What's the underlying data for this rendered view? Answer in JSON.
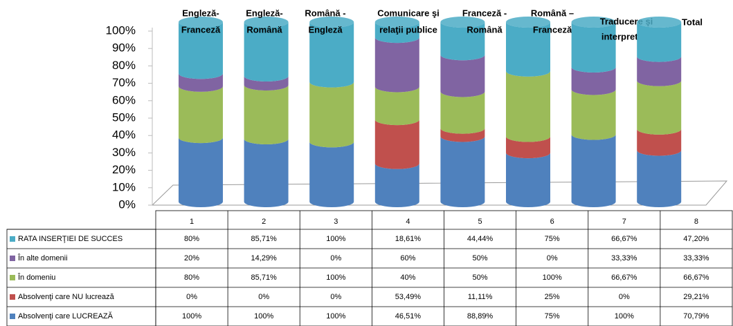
{
  "chart_data": {
    "type": "stacked-cylinder-table",
    "course_labels": [
      [
        "Engleză-",
        "Franceză"
      ],
      [
        "Engleză-",
        "Română"
      ],
      [
        "Română -",
        "Engleză"
      ],
      [
        "Comunicare şi",
        "relaţii publice"
      ],
      [
        "Franceză -",
        "Română"
      ],
      [
        "Română –",
        "Franceză"
      ],
      [
        "Traducere şi",
        "interpretare"
      ],
      [
        "Total"
      ]
    ],
    "categories": [
      "1",
      "2",
      "3",
      "4",
      "5",
      "6",
      "7",
      "8"
    ],
    "ylim": [
      0,
      100
    ],
    "yticks": [
      {
        "value": 0,
        "label": "0%"
      },
      {
        "value": 10,
        "label": "10%"
      },
      {
        "value": 20,
        "label": "20%"
      },
      {
        "value": 30,
        "label": "30%"
      },
      {
        "value": 40,
        "label": "40%"
      },
      {
        "value": 50,
        "label": "50%"
      },
      {
        "value": 60,
        "label": "60%"
      },
      {
        "value": 70,
        "label": "70%"
      },
      {
        "value": 80,
        "label": "80%"
      },
      {
        "value": 90,
        "label": "90%"
      },
      {
        "value": 100,
        "label": "100%"
      }
    ],
    "series": [
      {
        "name": "RATA INSERŢIEI DE SUCCES",
        "color": "#4bacc6",
        "values": [
          80,
          85.71,
          100,
          18.61,
          44.44,
          75,
          66.67,
          47.2
        ],
        "value_labels": [
          "80%",
          "85,71%",
          "100%",
          "18,61%",
          "44,44%",
          "75%",
          "66,67%",
          "47,20%"
        ]
      },
      {
        "name": "În alte domenii",
        "color": "#8064a2",
        "values": [
          20,
          14.29,
          0,
          60,
          50,
          0,
          33.33,
          33.33
        ],
        "value_labels": [
          "20%",
          "14,29%",
          "0%",
          "60%",
          "50%",
          "0%",
          "33,33%",
          "33,33%"
        ]
      },
      {
        "name": "În domeniu",
        "color": "#9bbb59",
        "values": [
          80,
          85.71,
          100,
          40,
          50,
          100,
          66.67,
          66.67
        ],
        "value_labels": [
          "80%",
          "85,71%",
          "100%",
          "40%",
          "50%",
          "100%",
          "66,67%",
          "66,67%"
        ]
      },
      {
        "name": "Absolvenţi care NU lucrează",
        "color": "#c0504d",
        "values": [
          0,
          0,
          0,
          53.49,
          11.11,
          25,
          0,
          29.21
        ],
        "value_labels": [
          "0%",
          "0%",
          "0%",
          "53,49%",
          "11,11%",
          "25%",
          "0%",
          "29,21%"
        ]
      },
      {
        "name": "Absolvenţi care LUCREAZĂ",
        "color": "#4f81bd",
        "values": [
          100,
          100,
          100,
          46.51,
          88.89,
          75,
          100,
          70.79
        ],
        "value_labels": [
          "100%",
          "100%",
          "100%",
          "46,51%",
          "88,89%",
          "75%",
          "100%",
          "70,79%"
        ]
      }
    ]
  }
}
